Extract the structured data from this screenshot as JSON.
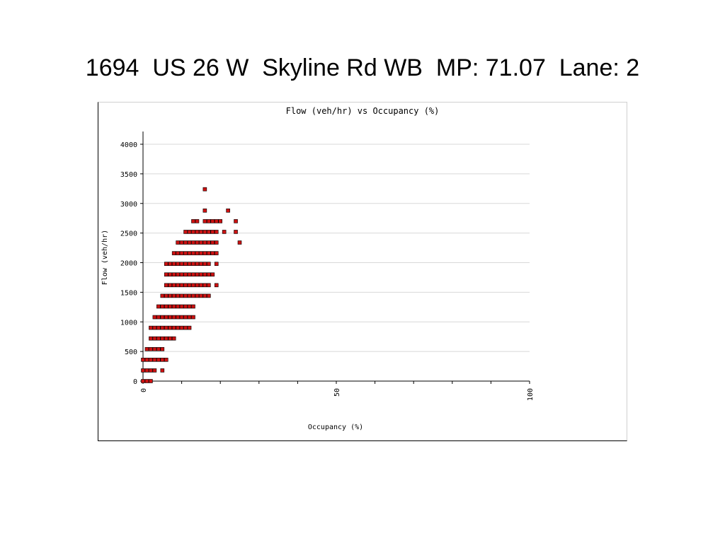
{
  "slide": {
    "title": "1694  US 26 W  Skyline Rd WB  MP: 71.07  Lane: 2"
  },
  "chart_data": {
    "type": "scatter",
    "title": "Flow (veh/hr) vs Occupancy (%)",
    "xlabel": "Occupancy (%)",
    "ylabel": "Flow (veh/hr)",
    "xlim": [
      0,
      100
    ],
    "ylim": [
      0,
      4000
    ],
    "x_ticks": [
      0,
      50,
      100
    ],
    "y_ticks": [
      0,
      500,
      1000,
      1500,
      2000,
      2500,
      3000,
      3500,
      4000
    ],
    "grid": "horizontal",
    "marker_color": "#cc1111",
    "series": [
      {
        "points": [
          [
            0,
            0
          ],
          [
            1,
            0
          ],
          [
            2,
            0
          ],
          [
            0,
            180
          ],
          [
            1,
            180
          ],
          [
            2,
            180
          ],
          [
            3,
            180
          ],
          [
            5,
            180
          ],
          [
            0,
            360
          ],
          [
            1,
            360
          ],
          [
            2,
            360
          ],
          [
            3,
            360
          ],
          [
            4,
            360
          ],
          [
            5,
            360
          ],
          [
            6,
            360
          ],
          [
            1,
            540
          ],
          [
            2,
            540
          ],
          [
            3,
            540
          ],
          [
            4,
            540
          ],
          [
            5,
            540
          ],
          [
            2,
            720
          ],
          [
            3,
            720
          ],
          [
            4,
            720
          ],
          [
            5,
            720
          ],
          [
            6,
            720
          ],
          [
            7,
            720
          ],
          [
            8,
            720
          ],
          [
            2,
            900
          ],
          [
            3,
            900
          ],
          [
            4,
            900
          ],
          [
            5,
            900
          ],
          [
            6,
            900
          ],
          [
            7,
            900
          ],
          [
            8,
            900
          ],
          [
            9,
            900
          ],
          [
            10,
            900
          ],
          [
            11,
            900
          ],
          [
            12,
            900
          ],
          [
            3,
            1080
          ],
          [
            4,
            1080
          ],
          [
            5,
            1080
          ],
          [
            6,
            1080
          ],
          [
            7,
            1080
          ],
          [
            8,
            1080
          ],
          [
            9,
            1080
          ],
          [
            10,
            1080
          ],
          [
            11,
            1080
          ],
          [
            12,
            1080
          ],
          [
            13,
            1080
          ],
          [
            4,
            1260
          ],
          [
            5,
            1260
          ],
          [
            6,
            1260
          ],
          [
            7,
            1260
          ],
          [
            8,
            1260
          ],
          [
            9,
            1260
          ],
          [
            10,
            1260
          ],
          [
            11,
            1260
          ],
          [
            12,
            1260
          ],
          [
            13,
            1260
          ],
          [
            5,
            1440
          ],
          [
            6,
            1440
          ],
          [
            7,
            1440
          ],
          [
            8,
            1440
          ],
          [
            9,
            1440
          ],
          [
            10,
            1440
          ],
          [
            11,
            1440
          ],
          [
            12,
            1440
          ],
          [
            13,
            1440
          ],
          [
            14,
            1440
          ],
          [
            15,
            1440
          ],
          [
            16,
            1440
          ],
          [
            17,
            1440
          ],
          [
            6,
            1620
          ],
          [
            7,
            1620
          ],
          [
            8,
            1620
          ],
          [
            9,
            1620
          ],
          [
            10,
            1620
          ],
          [
            11,
            1620
          ],
          [
            12,
            1620
          ],
          [
            13,
            1620
          ],
          [
            14,
            1620
          ],
          [
            15,
            1620
          ],
          [
            16,
            1620
          ],
          [
            17,
            1620
          ],
          [
            19,
            1620
          ],
          [
            6,
            1800
          ],
          [
            7,
            1800
          ],
          [
            8,
            1800
          ],
          [
            9,
            1800
          ],
          [
            10,
            1800
          ],
          [
            11,
            1800
          ],
          [
            12,
            1800
          ],
          [
            13,
            1800
          ],
          [
            14,
            1800
          ],
          [
            15,
            1800
          ],
          [
            16,
            1800
          ],
          [
            17,
            1800
          ],
          [
            18,
            1800
          ],
          [
            6,
            1980
          ],
          [
            7,
            1980
          ],
          [
            8,
            1980
          ],
          [
            9,
            1980
          ],
          [
            10,
            1980
          ],
          [
            11,
            1980
          ],
          [
            12,
            1980
          ],
          [
            13,
            1980
          ],
          [
            14,
            1980
          ],
          [
            15,
            1980
          ],
          [
            16,
            1980
          ],
          [
            17,
            1980
          ],
          [
            19,
            1980
          ],
          [
            8,
            2160
          ],
          [
            9,
            2160
          ],
          [
            10,
            2160
          ],
          [
            11,
            2160
          ],
          [
            12,
            2160
          ],
          [
            13,
            2160
          ],
          [
            14,
            2160
          ],
          [
            15,
            2160
          ],
          [
            16,
            2160
          ],
          [
            17,
            2160
          ],
          [
            18,
            2160
          ],
          [
            19,
            2160
          ],
          [
            9,
            2340
          ],
          [
            10,
            2340
          ],
          [
            11,
            2340
          ],
          [
            12,
            2340
          ],
          [
            13,
            2340
          ],
          [
            14,
            2340
          ],
          [
            15,
            2340
          ],
          [
            16,
            2340
          ],
          [
            17,
            2340
          ],
          [
            18,
            2340
          ],
          [
            19,
            2340
          ],
          [
            25,
            2340
          ],
          [
            11,
            2520
          ],
          [
            12,
            2520
          ],
          [
            13,
            2520
          ],
          [
            14,
            2520
          ],
          [
            15,
            2520
          ],
          [
            16,
            2520
          ],
          [
            17,
            2520
          ],
          [
            18,
            2520
          ],
          [
            19,
            2520
          ],
          [
            21,
            2520
          ],
          [
            24,
            2520
          ],
          [
            13,
            2700
          ],
          [
            14,
            2700
          ],
          [
            16,
            2700
          ],
          [
            17,
            2700
          ],
          [
            18,
            2700
          ],
          [
            19,
            2700
          ],
          [
            20,
            2700
          ],
          [
            24,
            2700
          ],
          [
            16,
            2880
          ],
          [
            22,
            2880
          ],
          [
            16,
            3240
          ]
        ]
      }
    ]
  }
}
